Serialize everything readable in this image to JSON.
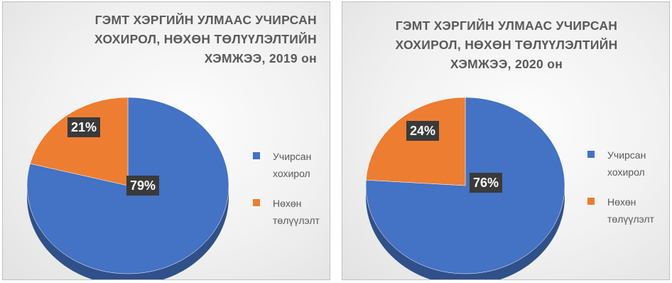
{
  "colors": {
    "series1": "#4472c4",
    "series2": "#ed7d31"
  },
  "charts": [
    {
      "title_lines": [
        "ГЭМТ ХЭРГИЙН УЛМААС УЧИРСАН",
        "ХОХИРОЛ, НӨХӨН ТӨЛҮҮЛЭЛТИЙН",
        "ХЭМЖЭЭ, 2019 он"
      ],
      "legend": [
        {
          "lines": [
            "Учирсан",
            "хохирол"
          ]
        },
        {
          "lines": [
            "Нөхөн",
            "төлүүлэлт"
          ]
        }
      ],
      "labels": [
        "79%",
        "21%"
      ]
    },
    {
      "title_lines": [
        "ГЭМТ ХЭРГИЙН УЛМААС УЧИРСАН",
        "ХОХИРОЛ, НӨХӨН ТӨЛҮҮЛЭЛТИЙН",
        "ХЭМЖЭЭ, 2020 он"
      ],
      "legend": [
        {
          "lines": [
            "Учирсан",
            "хохирол"
          ]
        },
        {
          "lines": [
            "Нөхөн",
            "төлүүлэлт"
          ]
        }
      ],
      "labels": [
        "76%",
        "24%"
      ]
    }
  ],
  "chart_data": [
    {
      "type": "pie",
      "title": "ГЭМТ ХЭРГИЙН УЛМААС УЧИРСАН ХОХИРОЛ, НӨХӨН ТӨЛҮҮЛЭЛТИЙН ХЭМЖЭЭ, 2019 он",
      "categories": [
        "Учирсан хохирол",
        "Нөхөн төлүүлэлт"
      ],
      "values": [
        79,
        21
      ],
      "legend_position": "right"
    },
    {
      "type": "pie",
      "title": "ГЭМТ ХЭРГИЙН УЛМААС УЧИРСАН ХОХИРОЛ, НӨХӨН ТӨЛҮҮЛЭЛТИЙН ХЭМЖЭЭ, 2020 он",
      "categories": [
        "Учирсан хохирол",
        "Нөхөн төлүүлэлт"
      ],
      "values": [
        76,
        24
      ],
      "legend_position": "right"
    }
  ]
}
